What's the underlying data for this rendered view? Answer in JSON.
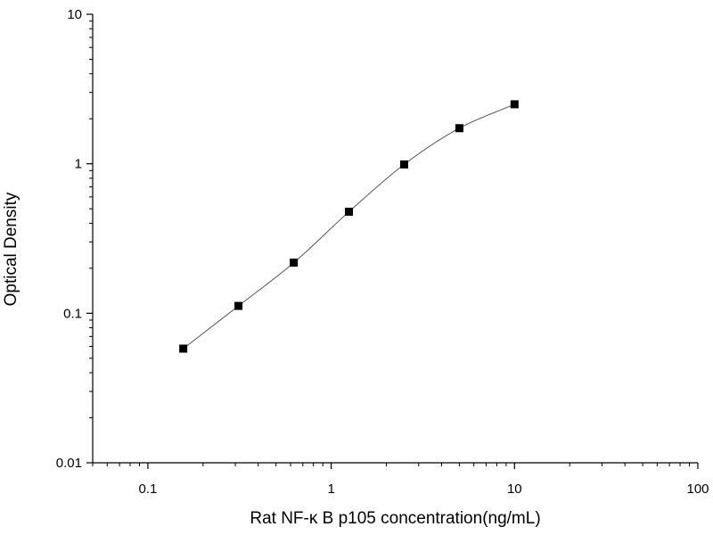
{
  "chart_data": {
    "type": "scatter",
    "title": "",
    "xlabel": "Rat NF-κ B p105 concentration(ng/mL)",
    "ylabel": "Optical Density",
    "xscale": "log",
    "yscale": "log",
    "xlim": [
      0.05,
      100
    ],
    "ylim": [
      0.01,
      10
    ],
    "x_ticks": [
      0.1,
      1,
      10,
      100
    ],
    "x_tick_labels": [
      "0.1",
      "1",
      "10",
      "100"
    ],
    "y_ticks": [
      0.01,
      0.1,
      1,
      10
    ],
    "y_tick_labels": [
      "0.01",
      "0.1",
      "1",
      "10"
    ],
    "grid": false,
    "legend": "none",
    "marker": "square",
    "marker_color": "#000000",
    "fit_curve": true,
    "series": [
      {
        "x": [
          0.156,
          0.312,
          0.625,
          1.25,
          2.5,
          5,
          10
        ],
        "y": [
          0.058,
          0.112,
          0.218,
          0.478,
          0.99,
          1.73,
          2.5
        ]
      }
    ]
  }
}
